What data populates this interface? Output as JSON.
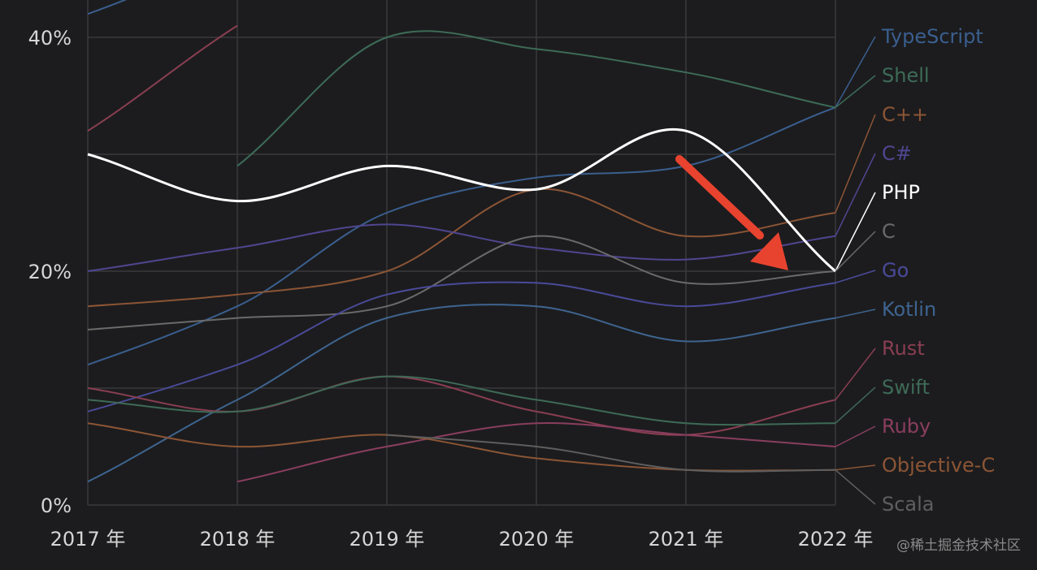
{
  "chart_data": {
    "type": "line",
    "categories": [
      "2017 年",
      "2018 年",
      "2019 年",
      "2020 年",
      "2021 年",
      "2022 年"
    ],
    "x": [
      2017,
      2018,
      2019,
      2020,
      2021,
      2022
    ],
    "y_ticks": [
      {
        "value": 0,
        "label": "0%"
      },
      {
        "value": 20,
        "label": "20%"
      },
      {
        "value": 40,
        "label": "40%"
      }
    ],
    "ylim": [
      0,
      40
    ],
    "grid": true,
    "legend": "right",
    "highlight": "PHP",
    "series": [
      {
        "name": "TypeScript",
        "color": "#3a5f8f",
        "values": [
          12,
          17,
          25,
          28,
          29,
          34
        ]
      },
      {
        "name": "Shell",
        "color": "#3d6b57",
        "values": [
          null,
          29,
          40,
          39,
          37,
          34
        ]
      },
      {
        "name": "C++",
        "color": "#8c5535",
        "values": [
          17,
          18,
          20,
          27,
          23,
          25
        ]
      },
      {
        "name": "C#",
        "color": "#4f4690",
        "values": [
          20,
          22,
          24,
          22,
          21,
          23
        ]
      },
      {
        "name": "PHP",
        "color": "#ffffff",
        "values": [
          30,
          26,
          29,
          27,
          32,
          20
        ]
      },
      {
        "name": "C",
        "color": "#6a6a6a",
        "values": [
          15,
          16,
          17,
          23,
          19,
          20
        ]
      },
      {
        "name": "Go",
        "color": "#4a4a9a",
        "values": [
          8,
          12,
          18,
          19,
          17,
          19
        ]
      },
      {
        "name": "Kotlin",
        "color": "#3e648f",
        "values": [
          2,
          9,
          16,
          17,
          14,
          16
        ]
      },
      {
        "name": "Rust",
        "color": "#8a3e52",
        "values": [
          10,
          8,
          11,
          8,
          6,
          9
        ]
      },
      {
        "name": "Swift",
        "color": "#3e6a57",
        "values": [
          9,
          8,
          11,
          9,
          7,
          7
        ]
      },
      {
        "name": "Ruby",
        "color": "#8a3e5e",
        "values": [
          null,
          2,
          5,
          7,
          6,
          5
        ]
      },
      {
        "name": "Objective-C",
        "color": "#8c5535",
        "values": [
          7,
          5,
          6,
          4,
          3,
          3
        ]
      },
      {
        "name": "Scala",
        "color": "#5e5e5e",
        "values": [
          null,
          null,
          6,
          5,
          3,
          3
        ]
      }
    ],
    "offscreen_top_series": [
      {
        "color": "#3a5f8f",
        "values": [
          42,
          47
        ]
      },
      {
        "color": "#8a3e52",
        "values": [
          32,
          41
        ]
      }
    ]
  },
  "watermark": "@稀土掘金技术社区"
}
